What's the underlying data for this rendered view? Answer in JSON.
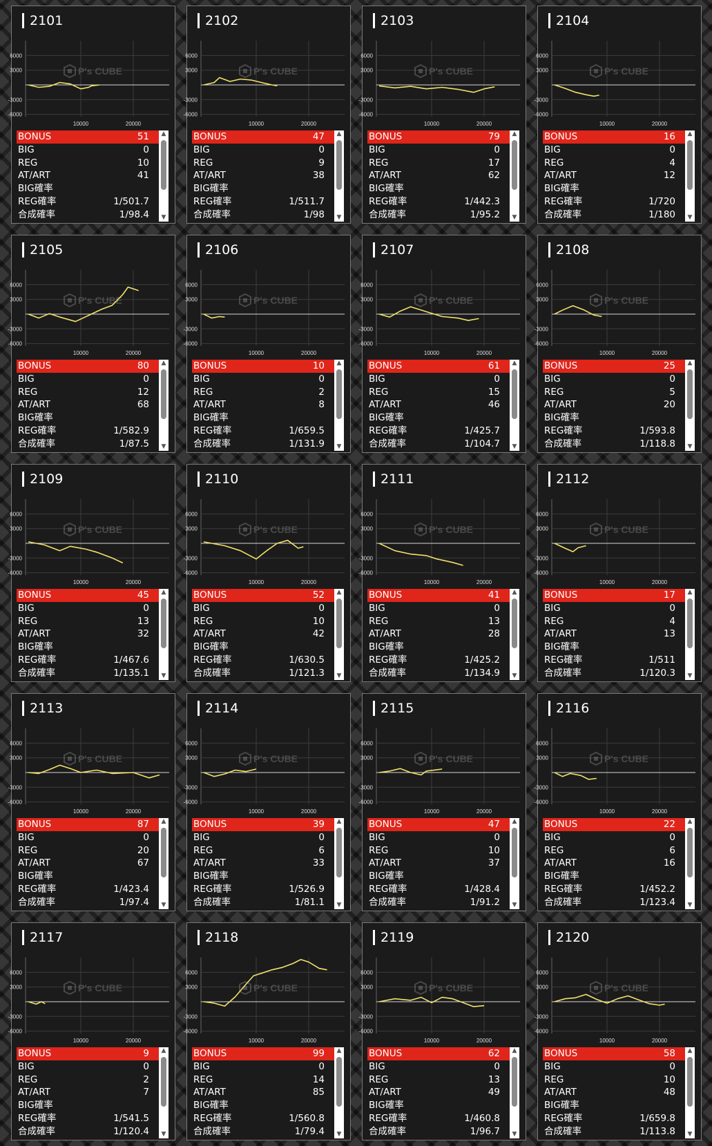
{
  "labels": {
    "bonus": "BONUS",
    "big": "BIG",
    "reg": "REG",
    "at": "AT/ART",
    "bigp": "BIG確率",
    "regp": "REG確率",
    "totp": "合成確率"
  },
  "axis": {
    "y_ticks": [
      "6000",
      "3000",
      "-3000",
      "-6000"
    ],
    "x_ticks": [
      "10000",
      "20000"
    ]
  },
  "watermark": "P's CUBE",
  "colors": {
    "line": "#f2e36a",
    "bonus_bar": "#e0251b"
  },
  "machines": [
    {
      "id": "2101",
      "bonus": "51",
      "big": "0",
      "reg": "10",
      "at": "41",
      "bigp": "",
      "regp": "1/501.7",
      "totp": "1/98.4",
      "chart": [
        [
          0,
          0
        ],
        [
          2000,
          -500
        ],
        [
          4000,
          -300
        ],
        [
          6000,
          500
        ],
        [
          8000,
          200
        ],
        [
          10000,
          -800
        ],
        [
          11500,
          -500
        ],
        [
          12000,
          -200
        ],
        [
          13500,
          0
        ]
      ]
    },
    {
      "id": "2102",
      "bonus": "47",
      "big": "0",
      "reg": "9",
      "at": "38",
      "bigp": "",
      "regp": "1/511.7",
      "totp": "1/98",
      "chart": [
        [
          0,
          0
        ],
        [
          2000,
          500
        ],
        [
          3000,
          1500
        ],
        [
          5000,
          700
        ],
        [
          7000,
          1200
        ],
        [
          9000,
          1000
        ],
        [
          11000,
          500
        ],
        [
          13000,
          0
        ],
        [
          14000,
          -200
        ]
      ]
    },
    {
      "id": "2103",
      "bonus": "79",
      "big": "0",
      "reg": "17",
      "at": "62",
      "bigp": "",
      "regp": "1/442.3",
      "totp": "1/95.2",
      "chart": [
        [
          0,
          -200
        ],
        [
          3000,
          -600
        ],
        [
          6000,
          -300
        ],
        [
          9000,
          -800
        ],
        [
          12000,
          -500
        ],
        [
          15000,
          -900
        ],
        [
          18000,
          -1500
        ],
        [
          20000,
          -800
        ],
        [
          22000,
          -400
        ]
      ]
    },
    {
      "id": "2104",
      "bonus": "16",
      "big": "0",
      "reg": "4",
      "at": "12",
      "bigp": "",
      "regp": "1/720",
      "totp": "1/180",
      "chart": [
        [
          0,
          0
        ],
        [
          2000,
          -700
        ],
        [
          4000,
          -1500
        ],
        [
          6000,
          -2000
        ],
        [
          7500,
          -2300
        ],
        [
          8500,
          -2100
        ]
      ]
    },
    {
      "id": "2105",
      "bonus": "80",
      "big": "0",
      "reg": "12",
      "at": "68",
      "bigp": "",
      "regp": "1/582.9",
      "totp": "1/87.5",
      "chart": [
        [
          0,
          0
        ],
        [
          2000,
          -800
        ],
        [
          4000,
          100
        ],
        [
          6000,
          -600
        ],
        [
          9000,
          -1500
        ],
        [
          12000,
          0
        ],
        [
          14000,
          1000
        ],
        [
          16000,
          1800
        ],
        [
          18000,
          4000
        ],
        [
          19000,
          5500
        ],
        [
          21000,
          4800
        ]
      ]
    },
    {
      "id": "2106",
      "bonus": "10",
      "big": "0",
      "reg": "2",
      "at": "8",
      "bigp": "",
      "regp": "1/659.5",
      "totp": "1/131.9",
      "chart": [
        [
          0,
          0
        ],
        [
          1500,
          -800
        ],
        [
          3000,
          -500
        ],
        [
          4000,
          -600
        ]
      ]
    },
    {
      "id": "2107",
      "bonus": "61",
      "big": "0",
      "reg": "15",
      "at": "46",
      "bigp": "",
      "regp": "1/425.7",
      "totp": "1/104.7",
      "chart": [
        [
          0,
          0
        ],
        [
          2000,
          -600
        ],
        [
          4000,
          600
        ],
        [
          6000,
          1500
        ],
        [
          9000,
          500
        ],
        [
          12000,
          -500
        ],
        [
          15000,
          -800
        ],
        [
          17000,
          -1300
        ],
        [
          19000,
          -900
        ]
      ]
    },
    {
      "id": "2108",
      "bonus": "25",
      "big": "0",
      "reg": "5",
      "at": "20",
      "bigp": "",
      "regp": "1/593.8",
      "totp": "1/118.8",
      "chart": [
        [
          0,
          0
        ],
        [
          1500,
          800
        ],
        [
          3500,
          1700
        ],
        [
          5500,
          900
        ],
        [
          7500,
          -200
        ],
        [
          9000,
          -500
        ]
      ]
    },
    {
      "id": "2109",
      "bonus": "45",
      "big": "0",
      "reg": "13",
      "at": "32",
      "bigp": "",
      "regp": "1/467.6",
      "totp": "1/135.1",
      "chart": [
        [
          0,
          300
        ],
        [
          3000,
          -300
        ],
        [
          6000,
          -1500
        ],
        [
          8000,
          -600
        ],
        [
          11000,
          -1200
        ],
        [
          13000,
          -1800
        ],
        [
          16000,
          -3000
        ],
        [
          18000,
          -4000
        ]
      ]
    },
    {
      "id": "2110",
      "bonus": "52",
      "big": "0",
      "reg": "10",
      "at": "42",
      "bigp": "",
      "regp": "1/630.5",
      "totp": "1/121.3",
      "chart": [
        [
          0,
          300
        ],
        [
          4000,
          -500
        ],
        [
          7000,
          -1500
        ],
        [
          10000,
          -3200
        ],
        [
          12000,
          -1500
        ],
        [
          14000,
          0
        ],
        [
          16000,
          600
        ],
        [
          18000,
          -1000
        ],
        [
          19000,
          -700
        ]
      ]
    },
    {
      "id": "2111",
      "bonus": "41",
      "big": "0",
      "reg": "13",
      "at": "28",
      "bigp": "",
      "regp": "1/425.2",
      "totp": "1/134.9",
      "chart": [
        [
          0,
          0
        ],
        [
          3000,
          -1500
        ],
        [
          6000,
          -2200
        ],
        [
          9000,
          -2500
        ],
        [
          11000,
          -3200
        ],
        [
          14000,
          -3900
        ],
        [
          16000,
          -4500
        ]
      ]
    },
    {
      "id": "2112",
      "bonus": "17",
      "big": "0",
      "reg": "4",
      "at": "13",
      "bigp": "",
      "regp": "1/511",
      "totp": "1/120.3",
      "chart": [
        [
          0,
          0
        ],
        [
          2000,
          -1000
        ],
        [
          3500,
          -1700
        ],
        [
          4500,
          -900
        ],
        [
          6000,
          -500
        ]
      ]
    },
    {
      "id": "2113",
      "bonus": "87",
      "big": "0",
      "reg": "20",
      "at": "67",
      "bigp": "",
      "regp": "1/423.4",
      "totp": "1/97.4",
      "chart": [
        [
          0,
          0
        ],
        [
          2000,
          -200
        ],
        [
          4000,
          600
        ],
        [
          6000,
          1500
        ],
        [
          8000,
          800
        ],
        [
          10000,
          0
        ],
        [
          13000,
          500
        ],
        [
          16000,
          -200
        ],
        [
          20000,
          0
        ],
        [
          23000,
          -1100
        ],
        [
          25000,
          -500
        ]
      ]
    },
    {
      "id": "2114",
      "bonus": "39",
      "big": "0",
      "reg": "6",
      "at": "33",
      "bigp": "",
      "regp": "1/526.9",
      "totp": "1/81.1",
      "chart": [
        [
          0,
          0
        ],
        [
          2000,
          -800
        ],
        [
          4000,
          -300
        ],
        [
          6000,
          500
        ],
        [
          8000,
          200
        ],
        [
          10000,
          700
        ]
      ]
    },
    {
      "id": "2115",
      "bonus": "47",
      "big": "0",
      "reg": "10",
      "at": "37",
      "bigp": "",
      "regp": "1/428.4",
      "totp": "1/91.2",
      "chart": [
        [
          0,
          0
        ],
        [
          2000,
          300
        ],
        [
          4000,
          800
        ],
        [
          6000,
          0
        ],
        [
          8000,
          -500
        ],
        [
          9000,
          300
        ],
        [
          12000,
          700
        ]
      ]
    },
    {
      "id": "2116",
      "bonus": "22",
      "big": "0",
      "reg": "6",
      "at": "16",
      "bigp": "",
      "regp": "1/452.2",
      "totp": "1/123.4",
      "chart": [
        [
          0,
          0
        ],
        [
          1500,
          -800
        ],
        [
          3000,
          -200
        ],
        [
          5000,
          -600
        ],
        [
          6500,
          -1400
        ],
        [
          8000,
          -1200
        ]
      ]
    },
    {
      "id": "2117",
      "bonus": "9",
      "big": "0",
      "reg": "2",
      "at": "7",
      "bigp": "",
      "regp": "1/541.5",
      "totp": "1/120.4",
      "chart": [
        [
          0,
          0
        ],
        [
          1500,
          -500
        ],
        [
          2500,
          0
        ],
        [
          3200,
          -400
        ]
      ]
    },
    {
      "id": "2118",
      "bonus": "99",
      "big": "0",
      "reg": "14",
      "at": "85",
      "bigp": "",
      "regp": "1/560.8",
      "totp": "1/79.4",
      "chart": [
        [
          0,
          0
        ],
        [
          2000,
          -300
        ],
        [
          4000,
          -900
        ],
        [
          6000,
          1000
        ],
        [
          8000,
          3500
        ],
        [
          9500,
          5300
        ],
        [
          11000,
          5800
        ],
        [
          13000,
          6500
        ],
        [
          15000,
          7000
        ],
        [
          17000,
          7800
        ],
        [
          18500,
          8600
        ],
        [
          20000,
          8100
        ],
        [
          22000,
          6800
        ],
        [
          23500,
          6500
        ]
      ]
    },
    {
      "id": "2119",
      "bonus": "62",
      "big": "0",
      "reg": "13",
      "at": "49",
      "bigp": "",
      "regp": "1/460.8",
      "totp": "1/96.7",
      "chart": [
        [
          0,
          0
        ],
        [
          3000,
          600
        ],
        [
          6000,
          300
        ],
        [
          8000,
          900
        ],
        [
          10000,
          -200
        ],
        [
          12000,
          900
        ],
        [
          14000,
          600
        ],
        [
          16000,
          -200
        ],
        [
          18000,
          -1000
        ],
        [
          20000,
          -800
        ]
      ]
    },
    {
      "id": "2120",
      "bonus": "58",
      "big": "0",
      "reg": "10",
      "at": "48",
      "bigp": "",
      "regp": "1/659.8",
      "totp": "1/113.8",
      "chart": [
        [
          0,
          0
        ],
        [
          2000,
          600
        ],
        [
          4000,
          800
        ],
        [
          6000,
          1500
        ],
        [
          8000,
          500
        ],
        [
          10000,
          -300
        ],
        [
          12000,
          600
        ],
        [
          14000,
          1200
        ],
        [
          16000,
          400
        ],
        [
          18000,
          -400
        ],
        [
          20000,
          -700
        ],
        [
          21000,
          -500
        ]
      ]
    }
  ]
}
